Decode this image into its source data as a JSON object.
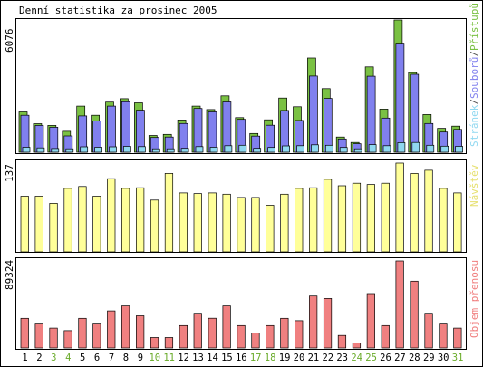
{
  "title": "Denní statistika za prosinec 2005",
  "colors": {
    "frame": "#000000",
    "hits": "#7ac143",
    "files": "#8080ee",
    "pages": "#90d8f0",
    "visits": "#ffff99",
    "kbytes": "#f08080",
    "weekend_day": "#6aab2a",
    "weekday": "#000000"
  },
  "chart_data": [
    {
      "type": "bar",
      "name": "hits-files-pages",
      "max_label": "6076",
      "ymax": 6076,
      "legend": [
        "Stránek",
        "Souborů",
        "Přístupů"
      ],
      "legend_colors": [
        "pages",
        "files",
        "hits"
      ],
      "series": [
        {
          "key": "hits",
          "values": [
            1850,
            1310,
            1230,
            960,
            2120,
            1700,
            2300,
            2460,
            2270,
            770,
            820,
            1480,
            2120,
            1960,
            2590,
            1590,
            860,
            1490,
            2490,
            2090,
            4330,
            2920,
            700,
            450,
            3920,
            1980,
            6076,
            3660,
            1730,
            1100,
            1200
          ]
        },
        {
          "key": "files",
          "values": [
            1700,
            1230,
            1150,
            750,
            1670,
            1440,
            2120,
            2320,
            1930,
            680,
            700,
            1320,
            2010,
            1850,
            2310,
            1510,
            740,
            1240,
            1920,
            1460,
            3500,
            2470,
            610,
            390,
            3490,
            1570,
            4970,
            3580,
            1320,
            930,
            1050
          ]
        },
        {
          "key": "pages",
          "values": [
            230,
            200,
            170,
            160,
            250,
            230,
            250,
            270,
            260,
            160,
            160,
            180,
            260,
            230,
            300,
            320,
            180,
            220,
            290,
            300,
            340,
            320,
            220,
            160,
            350,
            300,
            440,
            450,
            320,
            280,
            270
          ]
        }
      ]
    },
    {
      "type": "bar",
      "name": "visits",
      "max_label": "137",
      "ymax": 137,
      "legend": [
        "Návštěv"
      ],
      "legend_colors": [
        "visits"
      ],
      "series": [
        {
          "key": "visits",
          "values": [
            86,
            86,
            75,
            98,
            101,
            86,
            113,
            98,
            99,
            80,
            121,
            91,
            90,
            91,
            89,
            84,
            84,
            72,
            89,
            98,
            99,
            112,
            102,
            106,
            104,
            106,
            137,
            121,
            126,
            98,
            91
          ]
        }
      ]
    },
    {
      "type": "bar",
      "name": "kbytes",
      "max_label": "89324",
      "ymax": 89324,
      "legend": [
        "Objem přenosu"
      ],
      "legend_colors": [
        "kbytes"
      ],
      "series": [
        {
          "key": "kbytes",
          "values": [
            30400,
            25500,
            20400,
            17800,
            30400,
            25500,
            38100,
            43200,
            33000,
            10700,
            10700,
            23000,
            35600,
            30500,
            43200,
            23000,
            15300,
            23000,
            30400,
            28000,
            53300,
            50800,
            12800,
            5000,
            55800,
            23000,
            89324,
            68600,
            35600,
            25500,
            20400
          ]
        }
      ]
    }
  ],
  "days": [
    {
      "label": "1",
      "weekend": false
    },
    {
      "label": "2",
      "weekend": false
    },
    {
      "label": "3",
      "weekend": true
    },
    {
      "label": "4",
      "weekend": true
    },
    {
      "label": "5",
      "weekend": false
    },
    {
      "label": "6",
      "weekend": false
    },
    {
      "label": "7",
      "weekend": false
    },
    {
      "label": "8",
      "weekend": false
    },
    {
      "label": "9",
      "weekend": false
    },
    {
      "label": "10",
      "weekend": true
    },
    {
      "label": "11",
      "weekend": true
    },
    {
      "label": "12",
      "weekend": false
    },
    {
      "label": "13",
      "weekend": false
    },
    {
      "label": "14",
      "weekend": false
    },
    {
      "label": "15",
      "weekend": false
    },
    {
      "label": "16",
      "weekend": false
    },
    {
      "label": "17",
      "weekend": true
    },
    {
      "label": "18",
      "weekend": true
    },
    {
      "label": "19",
      "weekend": false
    },
    {
      "label": "20",
      "weekend": false
    },
    {
      "label": "21",
      "weekend": false
    },
    {
      "label": "22",
      "weekend": false
    },
    {
      "label": "23",
      "weekend": false
    },
    {
      "label": "24",
      "weekend": true
    },
    {
      "label": "25",
      "weekend": true
    },
    {
      "label": "26",
      "weekend": false
    },
    {
      "label": "27",
      "weekend": false
    },
    {
      "label": "28",
      "weekend": false
    },
    {
      "label": "29",
      "weekend": false
    },
    {
      "label": "30",
      "weekend": false
    },
    {
      "label": "31",
      "weekend": true
    }
  ]
}
